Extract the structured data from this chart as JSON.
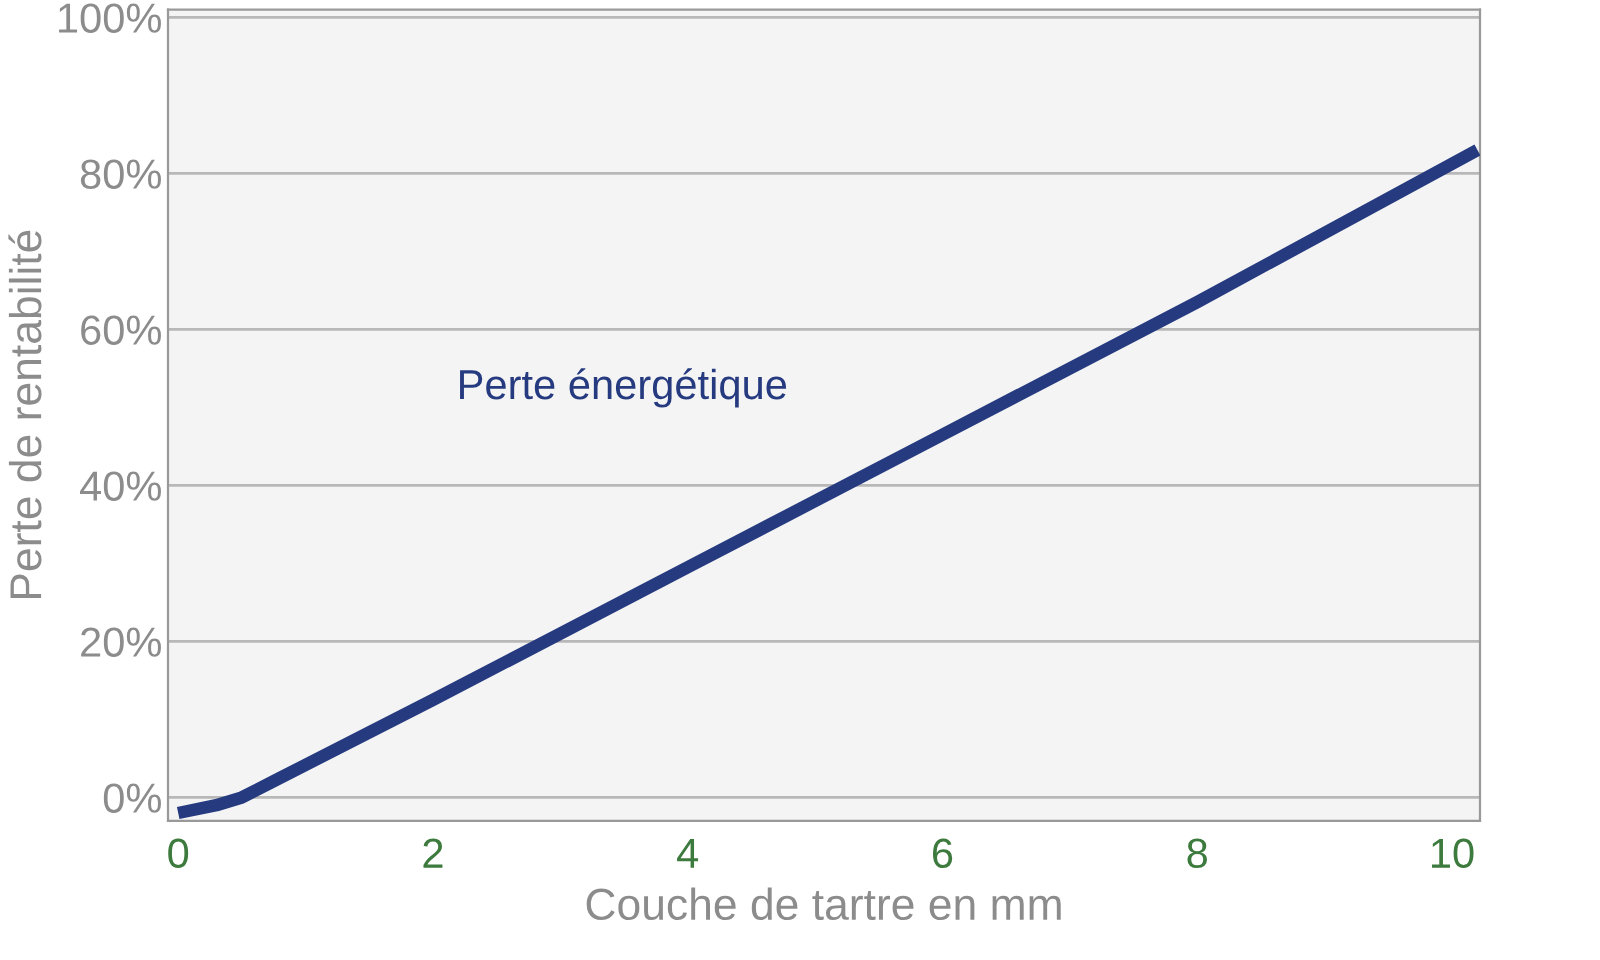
{
  "chart_data": {
    "type": "line",
    "xlabel": "Couche de tartre en mm",
    "ylabel": "Perte de rentabilité",
    "series": [
      {
        "name": "Perte énergétique",
        "color": "#263a80",
        "x": [
          0,
          0.3,
          0.5,
          0.8,
          2,
          4,
          6,
          8,
          10.2
        ],
        "values": [
          -2,
          -1,
          0,
          2.5,
          12.5,
          29.5,
          46.5,
          63.5,
          83
        ]
      }
    ],
    "xlim": [
      -0.08,
      10.22
    ],
    "xticks": [
      0,
      2,
      4,
      6,
      8,
      10
    ],
    "ylim": [
      -3,
      101
    ],
    "yticks": [
      {
        "value": 0,
        "label": "0%"
      },
      {
        "value": 20,
        "label": "20%"
      },
      {
        "value": 40,
        "label": "40%"
      },
      {
        "value": 60,
        "label": "60%"
      },
      {
        "value": 80,
        "label": "80%"
      },
      {
        "value": 100,
        "label": "100%"
      }
    ],
    "grid": "y",
    "legend": false,
    "marker": "none",
    "line_style": "solid"
  }
}
